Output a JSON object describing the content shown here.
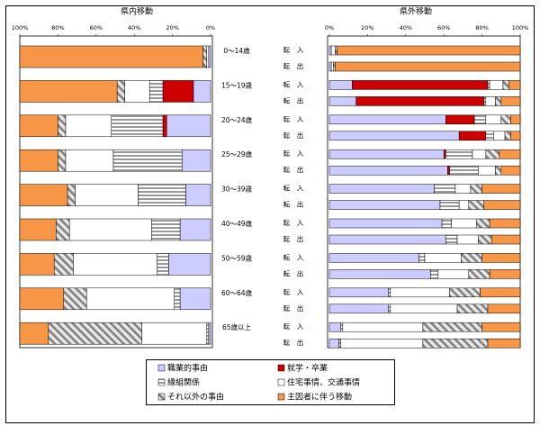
{
  "chart_data": [
    {
      "type": "stacked-bar-horizontal",
      "title": "県内移動",
      "categories": [
        "0～14歳",
        "15～19歳",
        "20～24歳",
        "25～29歳",
        "30～39歳",
        "40～49歳",
        "50～59歳",
        "60～64歳",
        "65歳以上"
      ],
      "xlim": [
        100,
        0
      ],
      "xticks": [
        {
          "value": 100,
          "label": "100%"
        },
        {
          "value": 80,
          "label": "80%"
        },
        {
          "value": 60,
          "label": "60%"
        },
        {
          "value": 40,
          "label": "40%"
        },
        {
          "value": 20,
          "label": "20%"
        },
        {
          "value": 0,
          "label": "0%"
        }
      ],
      "series": [
        {
          "values": [
            1,
            9,
            23,
            15,
            13,
            16,
            22,
            16,
            1
          ]
        },
        {
          "values": [
            0,
            16,
            2,
            0,
            0,
            0,
            0,
            0,
            0
          ]
        },
        {
          "values": [
            0,
            7,
            27,
            36,
            25,
            15,
            6,
            3,
            1
          ]
        },
        {
          "values": [
            1,
            13,
            24,
            25,
            33,
            43,
            44,
            46,
            34
          ]
        },
        {
          "values": [
            2,
            4,
            4,
            4,
            4,
            7,
            10,
            12,
            49
          ]
        },
        {
          "values": [
            96,
            51,
            20,
            20,
            25,
            19,
            18,
            23,
            15
          ]
        }
      ]
    },
    {
      "type": "stacked-bar-horizontal",
      "title": "県外移動",
      "categories": [
        "転　入",
        "転　出",
        "転　入",
        "転　出",
        "転　入",
        "転　出",
        "転　入",
        "転　出",
        "転　入",
        "転　出",
        "転　入",
        "転　出",
        "転　入",
        "転　出",
        "転　入",
        "転　出",
        "転　入",
        "転　出"
      ],
      "xlim": [
        0,
        100
      ],
      "xticks": [
        {
          "value": 0,
          "label": "0%"
        },
        {
          "value": 20,
          "label": "20%"
        },
        {
          "value": 40,
          "label": "40%"
        },
        {
          "value": 60,
          "label": "60%"
        },
        {
          "value": 80,
          "label": "80%"
        },
        {
          "value": 100,
          "label": "100%"
        }
      ],
      "series": [
        {
          "values": [
            1,
            1,
            12,
            14,
            61,
            68,
            60,
            62,
            55,
            58,
            59,
            61,
            47,
            53,
            31,
            31,
            6,
            5
          ]
        },
        {
          "values": [
            0,
            0,
            71,
            67,
            15,
            14,
            1,
            1,
            0,
            0,
            0,
            0,
            0,
            0,
            0,
            0,
            0,
            0
          ]
        },
        {
          "values": [
            0,
            0,
            1,
            1,
            6,
            4,
            14,
            15,
            11,
            10,
            5,
            6,
            3,
            4,
            1,
            1,
            1,
            1
          ]
        },
        {
          "values": [
            2,
            1,
            7,
            5,
            8,
            6,
            7,
            9,
            8,
            5,
            13,
            11,
            19,
            16,
            31,
            35,
            42,
            43
          ]
        },
        {
          "values": [
            1,
            1,
            3,
            3,
            5,
            3,
            7,
            3,
            6,
            8,
            7,
            7,
            11,
            11,
            16,
            16,
            31,
            34
          ]
        },
        {
          "values": [
            96,
            97,
            6,
            10,
            5,
            5,
            11,
            10,
            20,
            19,
            16,
            15,
            20,
            16,
            21,
            17,
            20,
            17
          ]
        }
      ]
    }
  ],
  "legend": [
    {
      "name": "職業的事由",
      "color": "#ccccff"
    },
    {
      "name": "就学・卒業",
      "color": "#cc0000"
    },
    {
      "name": "縁組関係",
      "color": "#999999",
      "pattern": "horizontal"
    },
    {
      "name": "住宅事情、交通事情",
      "color": "#ffffff"
    },
    {
      "name": "それ以外の事由",
      "color": "#808080",
      "pattern": "diagonal"
    },
    {
      "name": "主因者に伴う移動",
      "color": "#f79646"
    }
  ]
}
